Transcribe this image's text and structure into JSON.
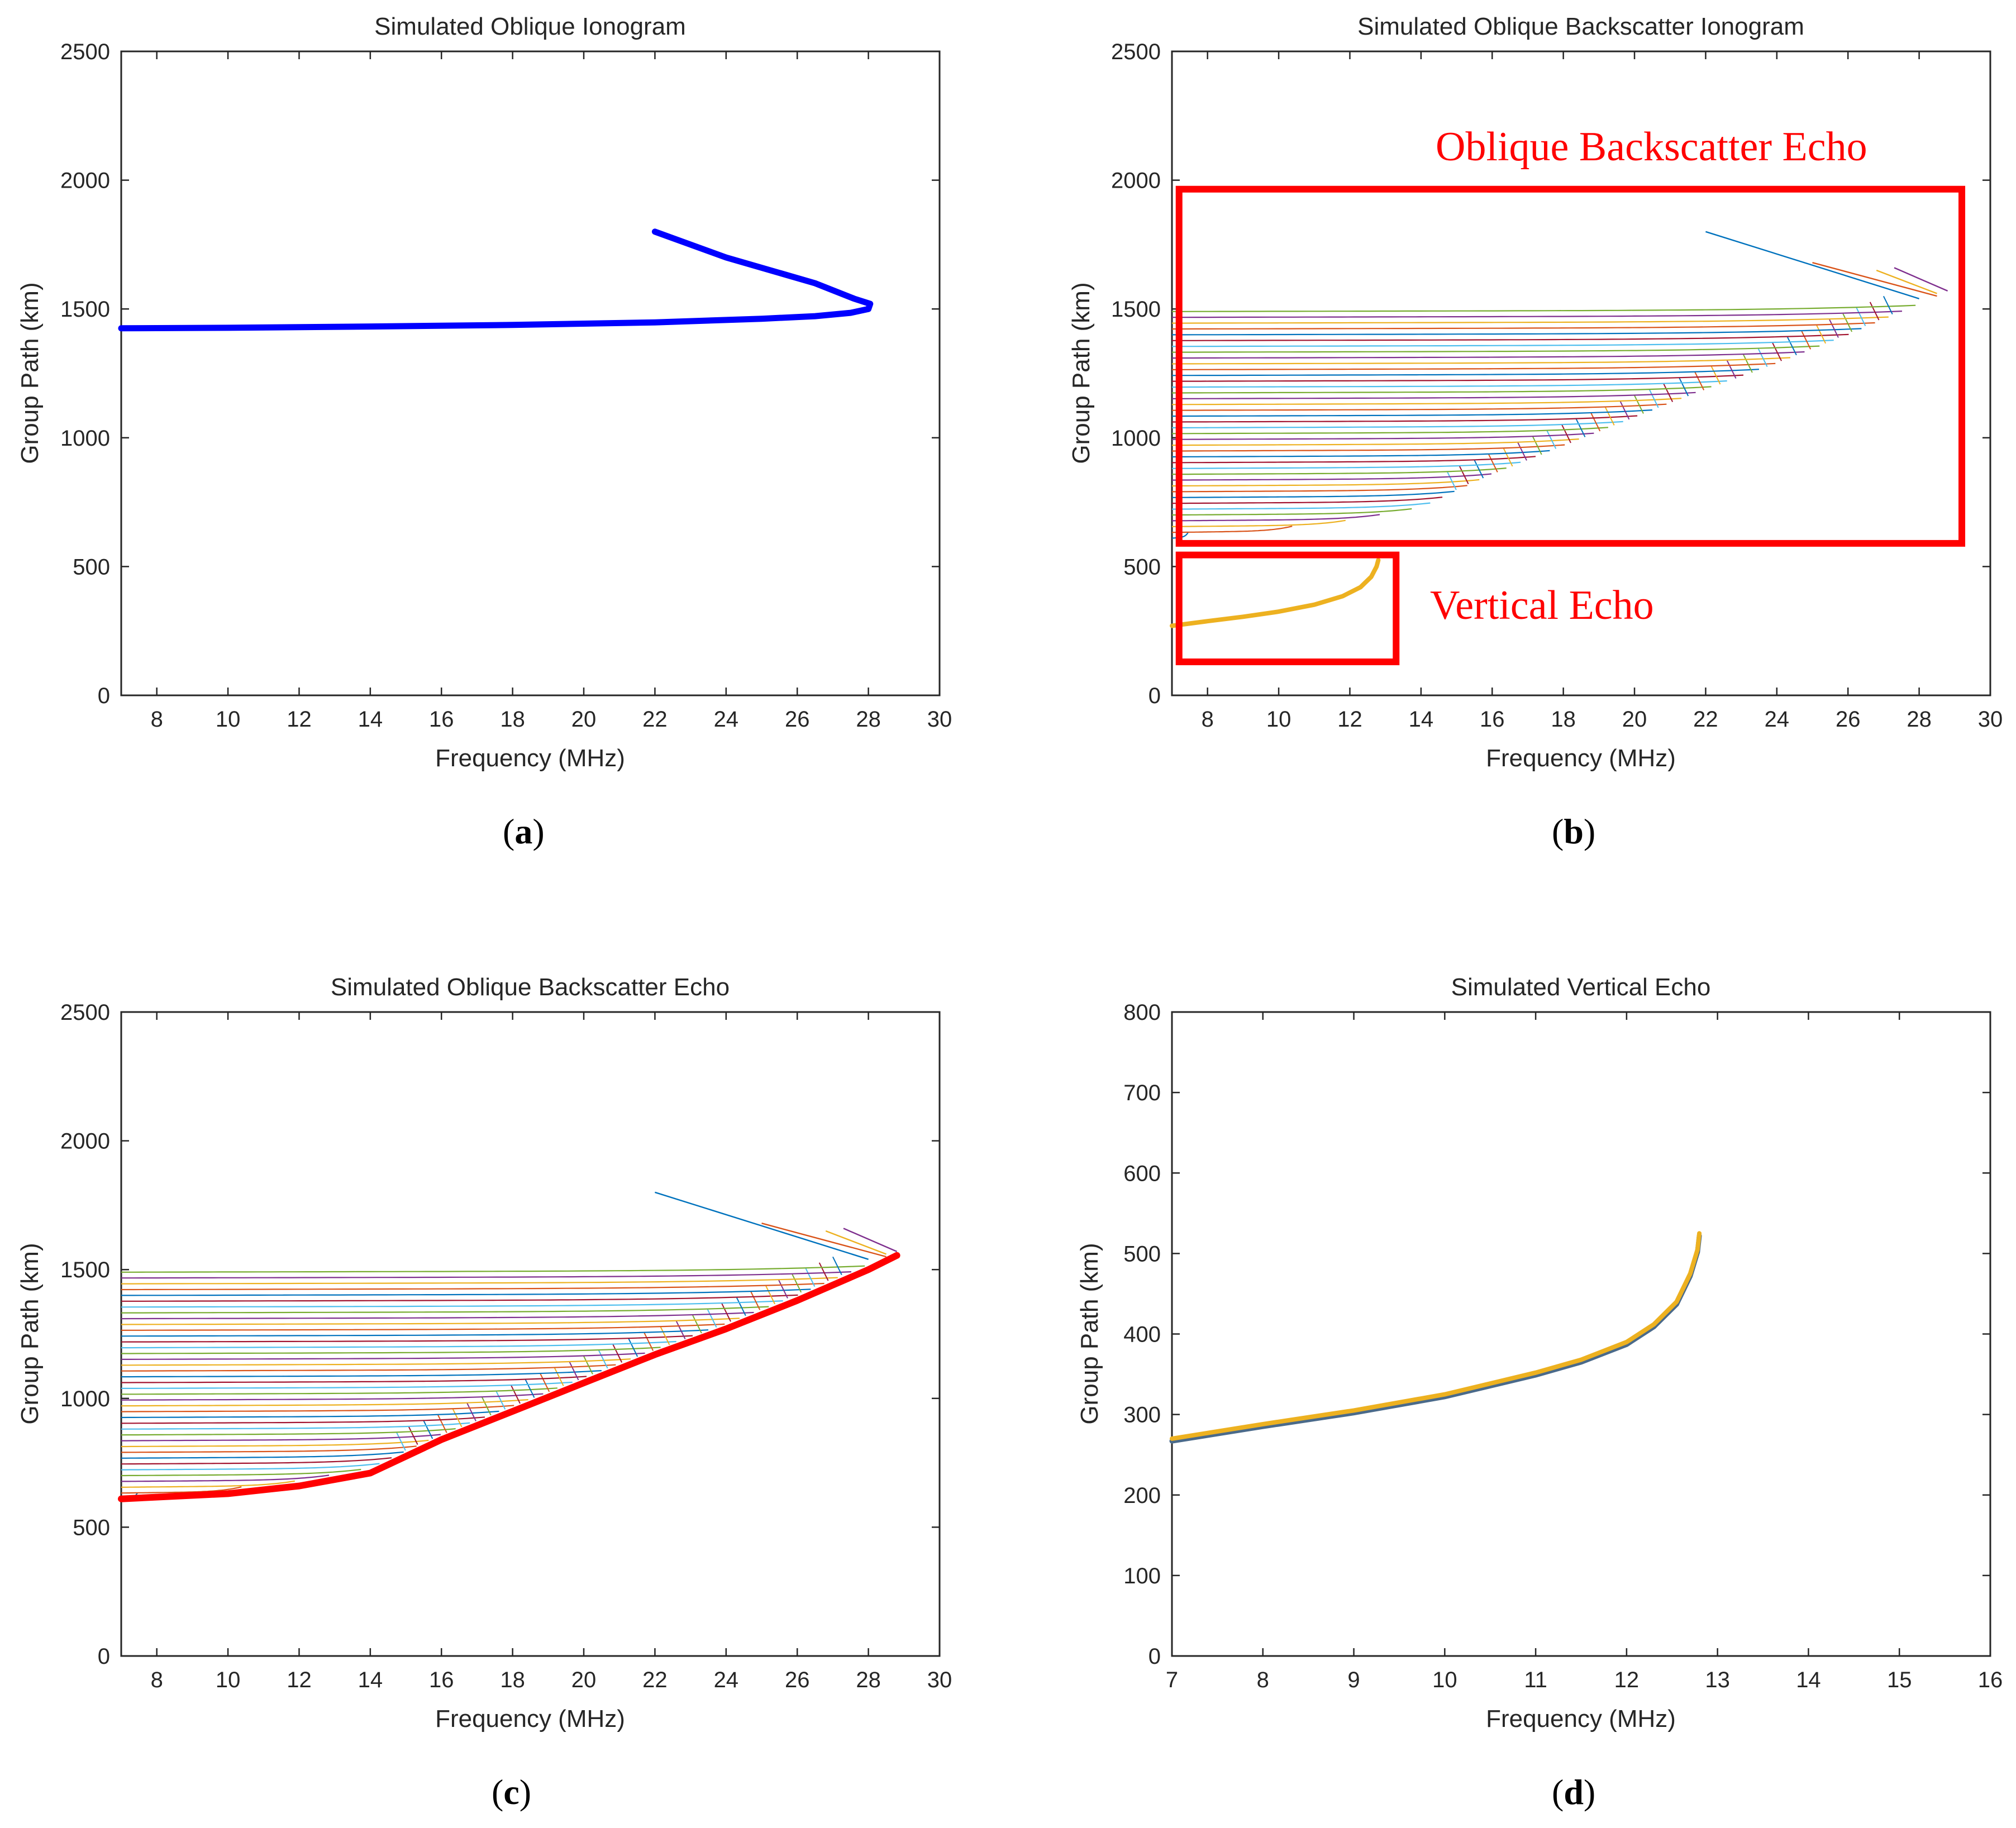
{
  "colors": {
    "axis": "#262626",
    "palette": [
      "#0072BD",
      "#D95319",
      "#EDB120",
      "#7E2F8E",
      "#77AC30",
      "#4DBEEE",
      "#A2142F"
    ],
    "highlight_red": "#FF0000",
    "trace_blue": "#0000FF",
    "vertical_echo": "#EDB120"
  },
  "chart_data": [
    {
      "id": "a",
      "panel_label": "(a)",
      "panel_letter": "a",
      "type": "line",
      "title": "Simulated Oblique Ionogram",
      "xlabel": "Frequency (MHz)",
      "ylabel": "Group Path (km)",
      "xlim": [
        7,
        30
      ],
      "ylim": [
        0,
        2500
      ],
      "xticks": [
        8,
        10,
        12,
        14,
        16,
        18,
        20,
        22,
        24,
        26,
        28,
        30
      ],
      "yticks": [
        0,
        500,
        1000,
        1500,
        2000,
        2500
      ],
      "series": [
        {
          "name": "oblique-trace",
          "color": "#0000FF",
          "x": [
            7.0,
            10.0,
            14.0,
            18.0,
            22.0,
            25.0,
            26.5,
            27.5,
            28.0,
            28.05,
            27.6,
            26.5,
            24.0,
            22.0
          ],
          "y": [
            1425,
            1427,
            1432,
            1438,
            1448,
            1462,
            1472,
            1485,
            1500,
            1520,
            1540,
            1600,
            1700,
            1800
          ]
        }
      ]
    },
    {
      "id": "b",
      "panel_label": "(b)",
      "panel_letter": "b",
      "type": "line",
      "title": "Simulated Oblique Backscatter Ionogram",
      "xlabel": "Frequency (MHz)",
      "ylabel": "Group Path (km)",
      "xlim": [
        7,
        30
      ],
      "ylim": [
        0,
        2500
      ],
      "xticks": [
        8,
        10,
        12,
        14,
        16,
        18,
        20,
        22,
        24,
        26,
        28,
        30
      ],
      "yticks": [
        0,
        500,
        1000,
        1500,
        2000,
        2500
      ],
      "annotations": [
        {
          "text": "Oblique Backscatter Echo",
          "box_x": [
            7.2,
            29.2
          ],
          "box_y": [
            590,
            1965
          ]
        },
        {
          "text": "Vertical Echo",
          "box_x": [
            7.2,
            13.3
          ],
          "box_y": [
            130,
            545
          ]
        }
      ],
      "echo_family": {
        "count": 40,
        "f_min": 7.0,
        "lower_envelope": {
          "x": [
            7,
            10,
            12,
            14,
            16,
            18,
            20,
            22,
            24,
            26,
            28,
            28.8
          ],
          "y": [
            610,
            630,
            660,
            710,
            840,
            950,
            1060,
            1170,
            1270,
            1380,
            1500,
            1555
          ]
        },
        "upper_curve_start": 1490,
        "extra_segments": [
          {
            "x": [
              22.0,
              28.0
            ],
            "y": [
              1800,
              1540
            ]
          },
          {
            "x": [
              25.0,
              28.5
            ],
            "y": [
              1680,
              1550
            ]
          },
          {
            "x": [
              26.8,
              28.5
            ],
            "y": [
              1650,
              1560
            ]
          },
          {
            "x": [
              27.3,
              28.8
            ],
            "y": [
              1660,
              1570
            ]
          }
        ]
      },
      "vertical_echo": {
        "name": "vertical-echo",
        "color": "#EDB120",
        "x": [
          7.0,
          8.0,
          9.0,
          10.0,
          11.0,
          11.8,
          12.3,
          12.6,
          12.75,
          12.8
        ],
        "y": [
          270,
          288,
          305,
          325,
          352,
          385,
          420,
          460,
          500,
          525
        ]
      }
    },
    {
      "id": "c",
      "panel_label": "(c)",
      "panel_letter": "c",
      "type": "line",
      "title": "Simulated Oblique Backscatter Echo",
      "xlabel": "Frequency (MHz)",
      "ylabel": "Group Path (km)",
      "xlim": [
        7,
        30
      ],
      "ylim": [
        0,
        2500
      ],
      "xticks": [
        8,
        10,
        12,
        14,
        16,
        18,
        20,
        22,
        24,
        26,
        28,
        30
      ],
      "yticks": [
        0,
        500,
        1000,
        1500,
        2000,
        2500
      ],
      "echo_family": {
        "count": 40,
        "f_min": 7.0,
        "lower_envelope": {
          "x": [
            7,
            10,
            12,
            14,
            16,
            18,
            20,
            22,
            24,
            26,
            28,
            28.8
          ],
          "y": [
            610,
            630,
            660,
            710,
            840,
            950,
            1060,
            1170,
            1270,
            1380,
            1500,
            1555
          ]
        },
        "upper_curve_start": 1490,
        "extra_segments": [
          {
            "x": [
              22.0,
              28.0
            ],
            "y": [
              1800,
              1540
            ]
          },
          {
            "x": [
              25.0,
              28.5
            ],
            "y": [
              1680,
              1550
            ]
          },
          {
            "x": [
              26.8,
              28.5
            ],
            "y": [
              1650,
              1560
            ]
          },
          {
            "x": [
              27.3,
              28.8
            ],
            "y": [
              1660,
              1570
            ]
          }
        ]
      },
      "leading_edge": {
        "name": "leading-edge",
        "color": "#FF0000",
        "x": [
          7,
          10,
          12,
          14,
          16,
          18,
          20,
          22,
          24,
          26,
          28,
          28.8
        ],
        "y": [
          610,
          630,
          660,
          710,
          840,
          950,
          1060,
          1170,
          1270,
          1380,
          1500,
          1555
        ]
      }
    },
    {
      "id": "d",
      "panel_label": "(d)",
      "panel_letter": "d",
      "type": "line",
      "title": "Simulated Vertical Echo",
      "xlabel": "Frequency (MHz)",
      "ylabel": "Group Path (km)",
      "xlim": [
        7,
        16
      ],
      "ylim": [
        0,
        800
      ],
      "xticks": [
        7,
        8,
        9,
        10,
        11,
        12,
        13,
        14,
        15,
        16
      ],
      "yticks": [
        0,
        100,
        200,
        300,
        400,
        500,
        600,
        700,
        800
      ],
      "series": [
        {
          "name": "vertical-echo",
          "color": "#EDB120",
          "x": [
            7.0,
            8.0,
            9.0,
            10.0,
            11.0,
            11.5,
            12.0,
            12.3,
            12.55,
            12.7,
            12.78,
            12.8
          ],
          "y": [
            270,
            288,
            305,
            325,
            352,
            368,
            390,
            412,
            440,
            475,
            505,
            525
          ]
        }
      ]
    }
  ]
}
